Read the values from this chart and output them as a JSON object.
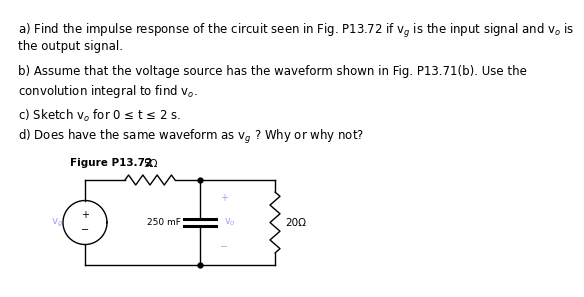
{
  "background_color": "#ffffff",
  "line_a": "a) Find the impulse response of the circuit seen in Fig. P13.72 if v$_g$ is the input signal and v$_o$ is",
  "line_a2": "the output signal.",
  "line_b": "b) Assume that the voltage source has the waveform shown in Fig. P13.71(b). Use the",
  "line_b2": "convolution integral to find v$_o$.",
  "line_c": "c) Sketch v$_o$ for 0 ≤ t ≤ 2 s.",
  "line_d": "d) Does have the same waveform as v$_g$ ? Why or why not?",
  "fontsize_text": 8.5,
  "figure_label": "Figure P13.72",
  "label_5ohm": "5Ω",
  "label_250mf": "250 mF",
  "label_20ohm": "20Ω",
  "label_vg": "v$_g$",
  "label_vo": "v$_o$",
  "text_color": "#000000",
  "circuit_color": "#000000"
}
